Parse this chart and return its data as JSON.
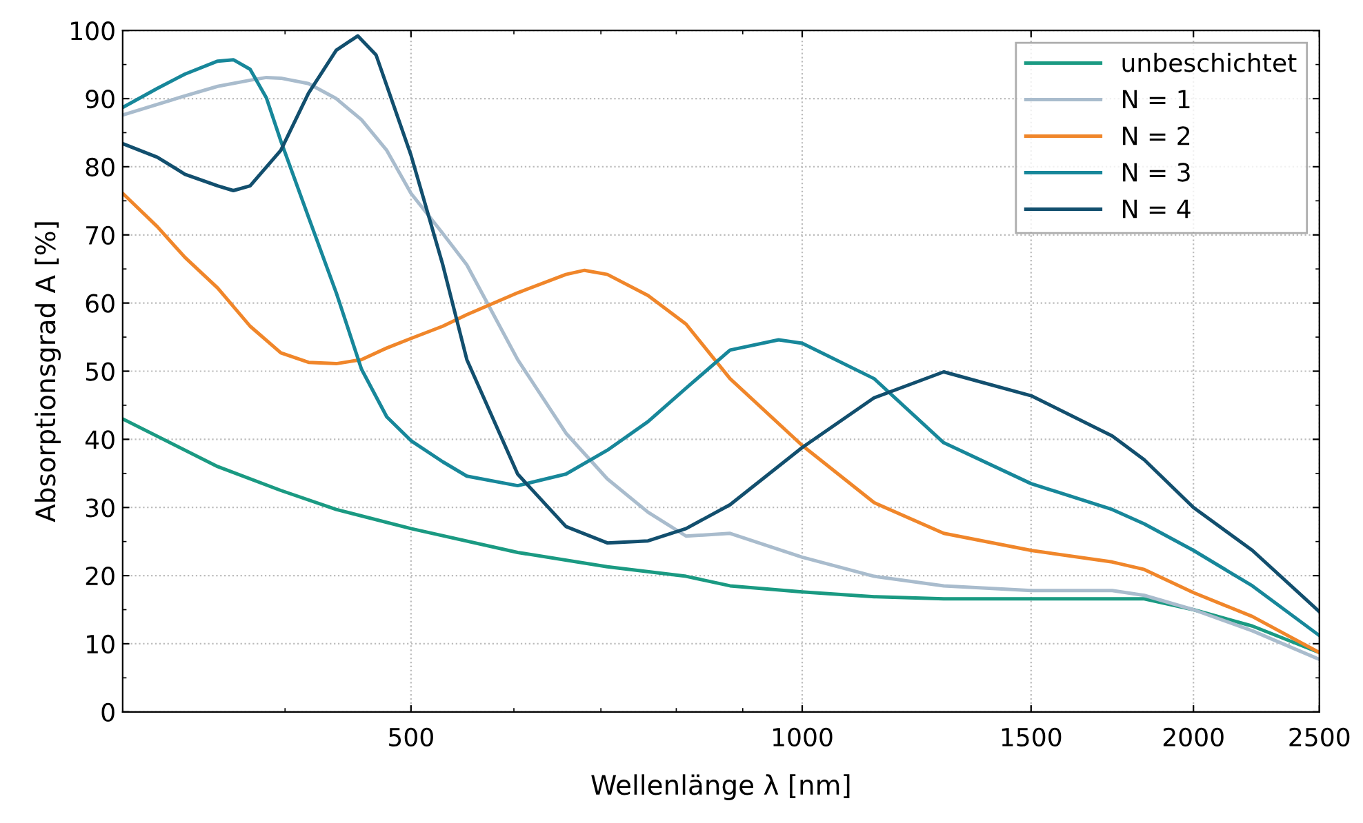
{
  "chart_data": {
    "type": "line",
    "xlabel": "Wellenlänge λ [nm]",
    "ylabel": "Absorptionsgrad A [%]",
    "log": "x",
    "xlim": [
      300,
      2500
    ],
    "xticks": [
      500,
      1000,
      1500,
      2000,
      2500
    ],
    "ylim": [
      0,
      100
    ],
    "yticks": [
      0,
      10,
      20,
      30,
      40,
      50,
      60,
      70,
      80,
      90,
      100
    ],
    "grid": true,
    "legend": "top right",
    "marker": "none",
    "line_style": "solid",
    "series": [
      {
        "name": "unbeschichtet",
        "color": "#1a9a82",
        "x": [
          300,
          355,
          397,
          438,
          500,
          604,
          708,
          814,
          880,
          1000,
          1136,
          1285,
          1500,
          1732,
          1833,
          2000,
          2220,
          2500
        ],
        "values": [
          43,
          36,
          32.5,
          29.7,
          26.9,
          23.4,
          21.3,
          19.9,
          18.5,
          17.6,
          16.9,
          16.6,
          16.6,
          16.6,
          16.6,
          15,
          12.6,
          8.7
        ]
      },
      {
        "name": "N = 1",
        "color": "#a9bccd",
        "x": [
          300,
          335,
          355,
          376,
          387,
          397,
          417,
          438,
          458,
          479,
          500,
          529,
          552,
          604,
          658,
          708,
          761,
          814,
          880,
          1000,
          1136,
          1285,
          1500,
          1732,
          1833,
          2000,
          2220,
          2500
        ],
        "values": [
          87.6,
          90.4,
          91.8,
          92.7,
          93.1,
          93,
          92.2,
          90,
          86.9,
          82.4,
          76.1,
          70.2,
          65.6,
          51.7,
          40.9,
          34.2,
          29.3,
          25.8,
          26.2,
          22.7,
          19.9,
          18.5,
          17.8,
          17.8,
          17.1,
          15,
          11.9,
          7.7
        ]
      },
      {
        "name": "N = 2",
        "color": "#f0862a",
        "x": [
          300,
          319,
          335,
          355,
          376,
          397,
          417,
          438,
          458,
          479,
          500,
          529,
          552,
          604,
          658,
          680,
          708,
          761,
          814,
          880,
          1000,
          1136,
          1285,
          1500,
          1732,
          1833,
          2000,
          2220,
          2500
        ],
        "values": [
          76.1,
          71.2,
          66.7,
          62.2,
          56.6,
          52.7,
          51.3,
          51.1,
          51.7,
          53.4,
          54.8,
          56.6,
          58.3,
          61.5,
          64.2,
          64.8,
          64.2,
          61.1,
          56.9,
          48.9,
          39.1,
          30.7,
          26.2,
          23.7,
          22,
          20.9,
          17.5,
          14,
          8.7
        ]
      },
      {
        "name": "N = 3",
        "color": "#17879a",
        "x": [
          300,
          319,
          335,
          355,
          365,
          376,
          387,
          397,
          417,
          438,
          458,
          479,
          500,
          529,
          552,
          604,
          658,
          708,
          761,
          814,
          880,
          959,
          1000,
          1136,
          1285,
          1500,
          1732,
          1833,
          2000,
          2220,
          2500
        ],
        "values": [
          88.7,
          91.5,
          93.6,
          95.5,
          95.7,
          94.3,
          90.1,
          83.8,
          72.6,
          61.5,
          50.3,
          43.3,
          39.8,
          36.7,
          34.6,
          33.2,
          34.9,
          38.4,
          42.6,
          47.5,
          53.1,
          54.6,
          54.1,
          48.9,
          39.5,
          33.5,
          29.7,
          27.6,
          23.7,
          18.5,
          11.2
        ]
      },
      {
        "name": "N = 4",
        "color": "#124f6e",
        "x": [
          300,
          319,
          335,
          355,
          365,
          376,
          397,
          417,
          438,
          455,
          470,
          500,
          529,
          552,
          604,
          658,
          708,
          761,
          814,
          880,
          1000,
          1136,
          1285,
          1500,
          1732,
          1833,
          2000,
          2220,
          2500
        ],
        "values": [
          83.4,
          81.4,
          78.9,
          77.2,
          76.5,
          77.2,
          82.4,
          90.8,
          97.1,
          99.2,
          96.4,
          81.7,
          65.6,
          51.7,
          34.9,
          27.2,
          24.8,
          25.1,
          26.9,
          30.4,
          38.8,
          46.1,
          49.9,
          46.4,
          40.5,
          37,
          30,
          23.7,
          14.7
        ]
      }
    ]
  }
}
